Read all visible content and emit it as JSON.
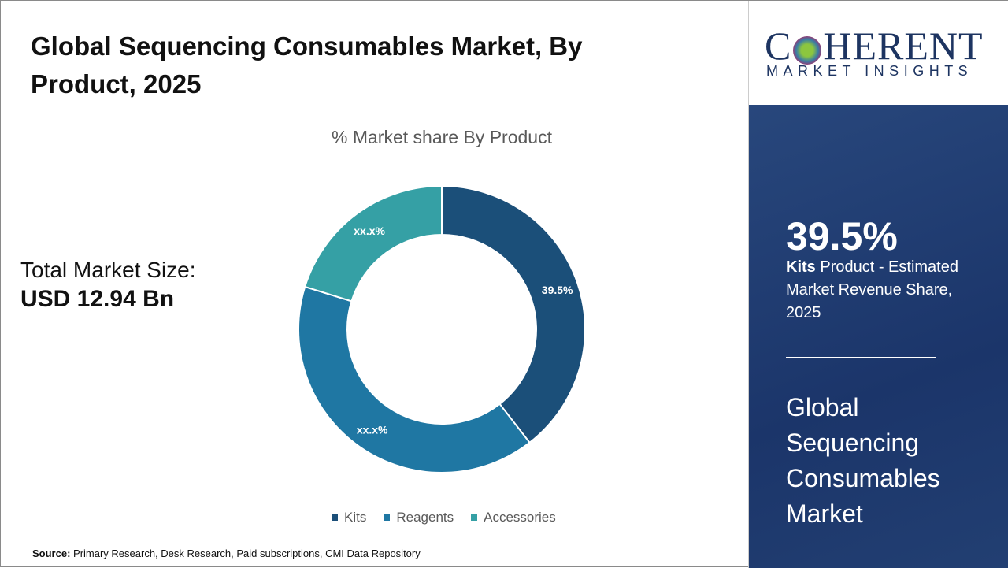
{
  "title": "Global Sequencing Consumables Market, By Product, 2025",
  "total_market": {
    "label": "Total Market Size:",
    "value": "USD 12.94 Bn"
  },
  "source": {
    "label": "Source:",
    "text": "Primary Research, Desk Research, Paid subscriptions, CMI Data Repository"
  },
  "chart_data": {
    "type": "pie",
    "subtitle": "% Market share By Product",
    "donut": true,
    "categories": [
      "Kits",
      "Reagents",
      "Accessories"
    ],
    "values": [
      39.5,
      40.3,
      20.2
    ],
    "data_labels": [
      "39.5%",
      "xx.x%",
      "xx.x%"
    ],
    "colors": [
      "#1b4f79",
      "#1f77a3",
      "#35a0a5"
    ],
    "legend": "bottom"
  },
  "logo": {
    "top": "COHERENT",
    "bottom": "MARKET INSIGHTS"
  },
  "panel": {
    "highlight": "39.5%",
    "segment": "Kits",
    "desc": " Product - Estimated Market Revenue Share, 2025",
    "market": "Global Sequencing Consumables Market"
  }
}
